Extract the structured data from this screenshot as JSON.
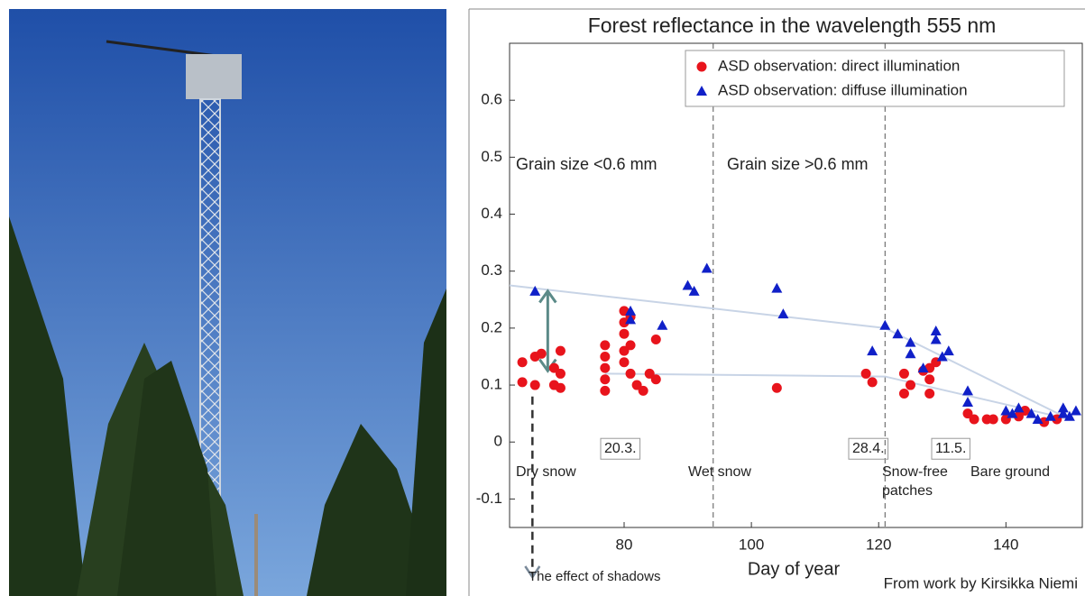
{
  "chart_data": {
    "type": "scatter",
    "title": "Forest reflectance in the wavelength 555 nm",
    "x_label": "Day of year",
    "xlim": [
      62,
      152
    ],
    "ylim": [
      -0.15,
      0.7
    ],
    "xticks": [
      80,
      100,
      120,
      140
    ],
    "yticks": [
      -0.1,
      0,
      0.1,
      0.2,
      0.3,
      0.4,
      0.5,
      0.6
    ],
    "legend": "top-right",
    "series": [
      {
        "name": "ASD observation: direct illumination",
        "color": "#e8141c",
        "marker": "circle",
        "x": [
          64,
          64,
          66,
          66,
          67,
          69,
          69,
          70,
          70,
          70,
          77,
          77,
          77,
          77,
          77,
          80,
          80,
          80,
          80,
          80,
          81,
          81,
          81,
          82,
          83,
          84,
          85,
          85,
          104,
          118,
          119,
          124,
          124,
          125,
          127,
          128,
          128,
          128,
          129,
          134,
          135,
          137,
          138,
          140,
          142,
          143,
          146,
          148
        ],
        "y": [
          0.14,
          0.105,
          0.1,
          0.15,
          0.155,
          0.13,
          0.1,
          0.095,
          0.12,
          0.16,
          0.17,
          0.15,
          0.13,
          0.11,
          0.09,
          0.23,
          0.21,
          0.19,
          0.16,
          0.14,
          0.22,
          0.17,
          0.12,
          0.1,
          0.09,
          0.12,
          0.18,
          0.11,
          0.095,
          0.12,
          0.105,
          0.12,
          0.085,
          0.1,
          0.125,
          0.13,
          0.11,
          0.085,
          0.14,
          0.05,
          0.04,
          0.04,
          0.04,
          0.04,
          0.045,
          0.055,
          0.035,
          0.04
        ]
      },
      {
        "name": "ASD observation: diffuse illumination",
        "color": "#1020c8",
        "marker": "triangle",
        "x": [
          66,
          81,
          81,
          86,
          90,
          91,
          93,
          104,
          105,
          119,
          121,
          123,
          125,
          125,
          127,
          129,
          129,
          130,
          131,
          134,
          134,
          140,
          141,
          142,
          144,
          145,
          147,
          149,
          150,
          151,
          149
        ],
        "y": [
          0.265,
          0.23,
          0.215,
          0.205,
          0.275,
          0.265,
          0.305,
          0.27,
          0.225,
          0.16,
          0.205,
          0.19,
          0.175,
          0.155,
          0.13,
          0.195,
          0.18,
          0.15,
          0.16,
          0.09,
          0.07,
          0.055,
          0.05,
          0.06,
          0.05,
          0.04,
          0.045,
          0.05,
          0.045,
          0.055,
          0.06
        ]
      }
    ],
    "trend_lines": [
      {
        "x": [
          62,
          121,
          150
        ],
        "y": [
          0.275,
          0.2,
          0.04
        ]
      },
      {
        "x": [
          77,
          121,
          150
        ],
        "y": [
          0.12,
          0.115,
          0.04
        ]
      }
    ],
    "vlines": [
      94,
      121
    ],
    "annotations": [
      "Grain size <0.6 mm",
      "Grain size >0.6 mm",
      "Dry snow",
      "Wet snow",
      "Snow-free",
      "patches",
      "Bare ground",
      "20.3.",
      "28.4.",
      "11.5.",
      "The effect of shadows"
    ],
    "credit": "From work by Kirsikka Niemi"
  }
}
